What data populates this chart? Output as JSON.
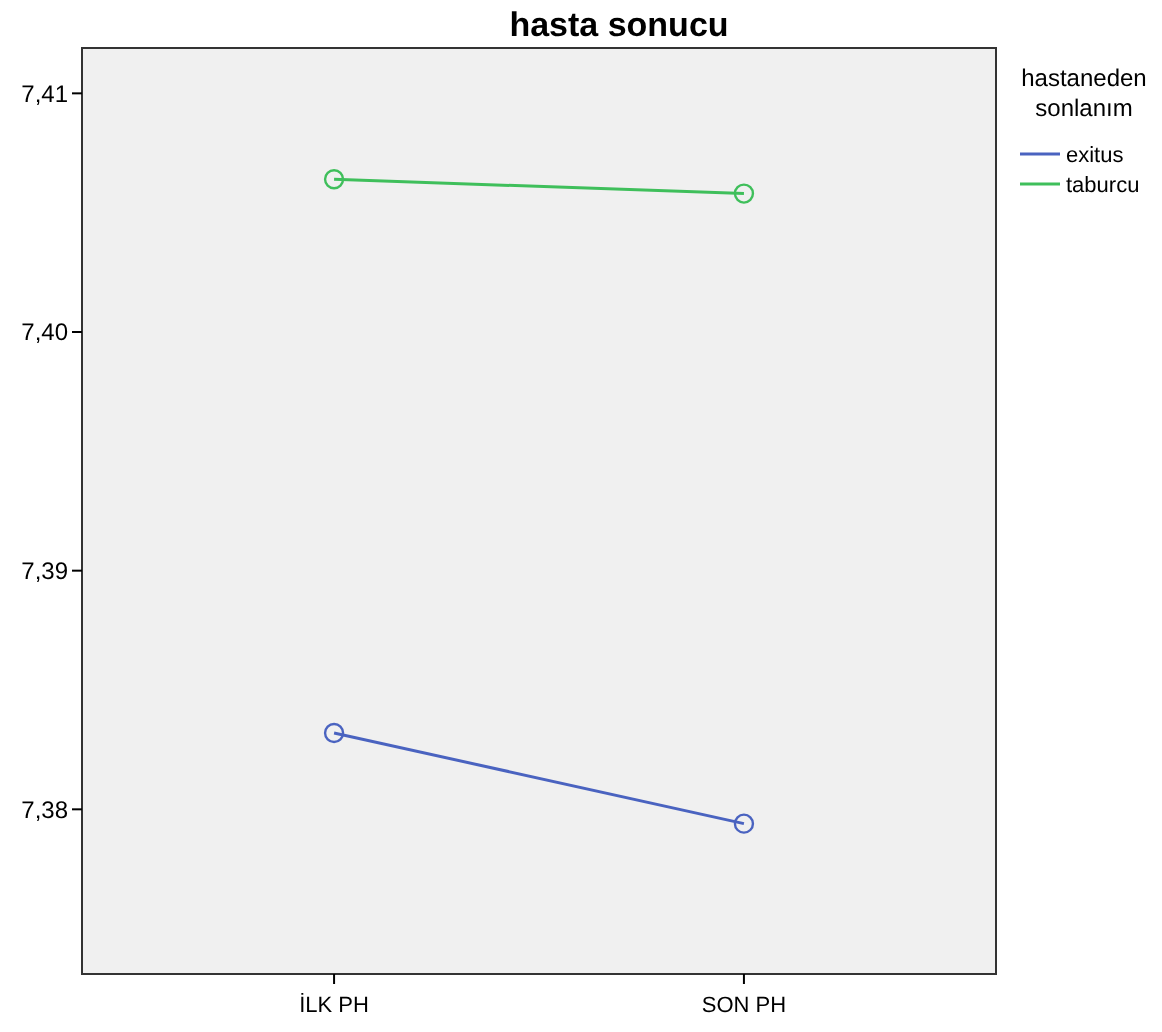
{
  "chart_data": {
    "type": "line",
    "title": "hasta sonucu",
    "legend_title": "hastaneden sonlanım",
    "categories": [
      "İLK PH",
      "SON PH"
    ],
    "series": [
      {
        "name": "exitus",
        "color": "#4a63c0",
        "values": [
          7.3832,
          7.3794
        ]
      },
      {
        "name": "taburcu",
        "color": "#3fbf5b",
        "values": [
          7.4064,
          7.4058
        ]
      }
    ],
    "ylim": [
      7.3731,
      7.4119
    ],
    "yticks": [
      {
        "value": 7.38,
        "label": "7,38"
      },
      {
        "value": 7.39,
        "label": "7,39"
      },
      {
        "value": 7.4,
        "label": "7,40"
      },
      {
        "value": 7.41,
        "label": "7,41"
      }
    ],
    "grid": false,
    "legend": "top right",
    "marker": "circle",
    "line_style": "solid"
  }
}
